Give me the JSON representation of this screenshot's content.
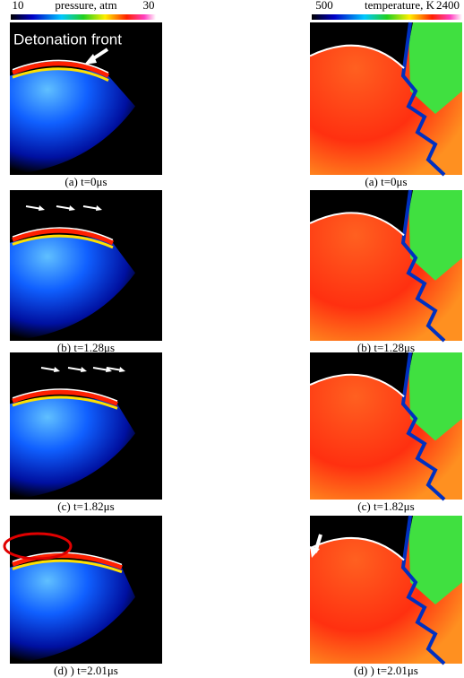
{
  "pressure_bar": {
    "min": 10,
    "label": "pressure, atm",
    "max": 30
  },
  "temperature_bar": {
    "min": 500,
    "label": "temperature, K",
    "max": 2400
  },
  "annotation": "Detonation front",
  "left_captions": [
    "(a) t=0μs",
    "(b) t=1.28μs",
    "(c) t=1.82μs",
    "(d) ) t=2.01μs"
  ],
  "right_captions": [
    "(a) t=0μs",
    "(b) t=1.28μs",
    "(c) t=1.82μs",
    "(d) ) t=2.01μs"
  ]
}
